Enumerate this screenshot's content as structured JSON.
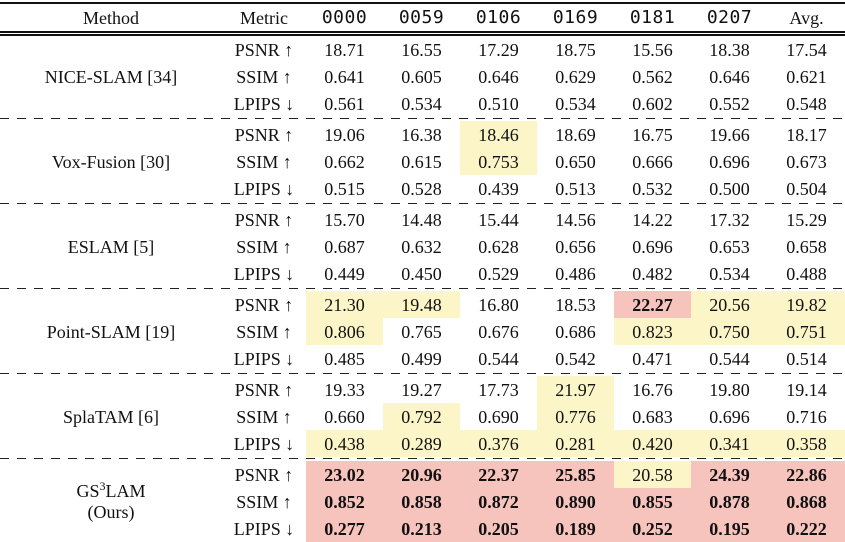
{
  "table": {
    "colors": {
      "best_bg": "#F7C3BD",
      "second_bg": "#FBF5C8"
    },
    "headers": {
      "method": "Method",
      "metric": "Metric",
      "columns": [
        "0000",
        "0059",
        "0106",
        "0169",
        "0181",
        "0207",
        "Avg."
      ]
    },
    "groups": [
      {
        "method": "NICE-SLAM [34]",
        "rows": [
          {
            "metric": "PSNR ↑",
            "values": [
              "18.71",
              "16.55",
              "17.29",
              "18.75",
              "15.56",
              "18.38",
              "17.54"
            ],
            "hl": [
              "",
              "",
              "",
              "",
              "",
              "",
              ""
            ]
          },
          {
            "metric": "SSIM ↑",
            "values": [
              "0.641",
              "0.605",
              "0.646",
              "0.629",
              "0.562",
              "0.646",
              "0.621"
            ],
            "hl": [
              "",
              "",
              "",
              "",
              "",
              "",
              ""
            ]
          },
          {
            "metric": "LPIPS ↓",
            "values": [
              "0.561",
              "0.534",
              "0.510",
              "0.534",
              "0.602",
              "0.552",
              "0.548"
            ],
            "hl": [
              "",
              "",
              "",
              "",
              "",
              "",
              ""
            ]
          }
        ]
      },
      {
        "method": "Vox-Fusion [30]",
        "rows": [
          {
            "metric": "PSNR ↑",
            "values": [
              "19.06",
              "16.38",
              "18.46",
              "18.69",
              "16.75",
              "19.66",
              "18.17"
            ],
            "hl": [
              "",
              "",
              "y",
              "",
              "",
              "",
              ""
            ]
          },
          {
            "metric": "SSIM ↑",
            "values": [
              "0.662",
              "0.615",
              "0.753",
              "0.650",
              "0.666",
              "0.696",
              "0.673"
            ],
            "hl": [
              "",
              "",
              "y",
              "",
              "",
              "",
              ""
            ]
          },
          {
            "metric": "LPIPS ↓",
            "values": [
              "0.515",
              "0.528",
              "0.439",
              "0.513",
              "0.532",
              "0.500",
              "0.504"
            ],
            "hl": [
              "",
              "",
              "",
              "",
              "",
              "",
              ""
            ]
          }
        ]
      },
      {
        "method": "ESLAM [5]",
        "rows": [
          {
            "metric": "PSNR ↑",
            "values": [
              "15.70",
              "14.48",
              "15.44",
              "14.56",
              "14.22",
              "17.32",
              "15.29"
            ],
            "hl": [
              "",
              "",
              "",
              "",
              "",
              "",
              ""
            ]
          },
          {
            "metric": "SSIM ↑",
            "values": [
              "0.687",
              "0.632",
              "0.628",
              "0.656",
              "0.696",
              "0.653",
              "0.658"
            ],
            "hl": [
              "",
              "",
              "",
              "",
              "",
              "",
              ""
            ]
          },
          {
            "metric": "LPIPS ↓",
            "values": [
              "0.449",
              "0.450",
              "0.529",
              "0.486",
              "0.482",
              "0.534",
              "0.488"
            ],
            "hl": [
              "",
              "",
              "",
              "",
              "",
              "",
              ""
            ]
          }
        ]
      },
      {
        "method": "Point-SLAM [19]",
        "rows": [
          {
            "metric": "PSNR ↑",
            "values": [
              "21.30",
              "19.48",
              "16.80",
              "18.53",
              "22.27",
              "20.56",
              "19.82"
            ],
            "hl": [
              "y",
              "y",
              "",
              "",
              "r",
              "y",
              "y"
            ]
          },
          {
            "metric": "SSIM ↑",
            "values": [
              "0.806",
              "0.765",
              "0.676",
              "0.686",
              "0.823",
              "0.750",
              "0.751"
            ],
            "hl": [
              "y",
              "",
              "",
              "",
              "y",
              "y",
              "y"
            ]
          },
          {
            "metric": "LPIPS ↓",
            "values": [
              "0.485",
              "0.499",
              "0.544",
              "0.542",
              "0.471",
              "0.544",
              "0.514"
            ],
            "hl": [
              "",
              "",
              "",
              "",
              "",
              "",
              ""
            ]
          }
        ]
      },
      {
        "method": "SplaTAM [6]",
        "rows": [
          {
            "metric": "PSNR ↑",
            "values": [
              "19.33",
              "19.27",
              "17.73",
              "21.97",
              "16.76",
              "19.80",
              "19.14"
            ],
            "hl": [
              "",
              "",
              "",
              "y",
              "",
              "",
              ""
            ]
          },
          {
            "metric": "SSIM ↑",
            "values": [
              "0.660",
              "0.792",
              "0.690",
              "0.776",
              "0.683",
              "0.696",
              "0.716"
            ],
            "hl": [
              "",
              "y",
              "",
              "y",
              "",
              "",
              ""
            ]
          },
          {
            "metric": "LPIPS ↓",
            "values": [
              "0.438",
              "0.289",
              "0.376",
              "0.281",
              "0.420",
              "0.341",
              "0.358"
            ],
            "hl": [
              "y",
              "y",
              "y",
              "y",
              "y",
              "y",
              "y"
            ]
          }
        ]
      },
      {
        "method": "GS3LAM (Ours)",
        "method_parts": {
          "prefix": "GS",
          "sup": "3",
          "suffix": "LAM",
          "line2": "(Ours)"
        },
        "rows": [
          {
            "metric": "PSNR ↑",
            "values": [
              "23.02",
              "20.96",
              "22.37",
              "25.85",
              "20.58",
              "24.39",
              "22.86"
            ],
            "hl": [
              "r",
              "r",
              "r",
              "r",
              "y",
              "r",
              "r"
            ]
          },
          {
            "metric": "SSIM ↑",
            "values": [
              "0.852",
              "0.858",
              "0.872",
              "0.890",
              "0.855",
              "0.878",
              "0.868"
            ],
            "hl": [
              "r",
              "r",
              "r",
              "r",
              "r",
              "r",
              "r"
            ]
          },
          {
            "metric": "LPIPS ↓",
            "values": [
              "0.277",
              "0.213",
              "0.205",
              "0.189",
              "0.252",
              "0.195",
              "0.222"
            ],
            "hl": [
              "r",
              "r",
              "r",
              "r",
              "r",
              "r",
              "r"
            ]
          }
        ]
      }
    ]
  }
}
